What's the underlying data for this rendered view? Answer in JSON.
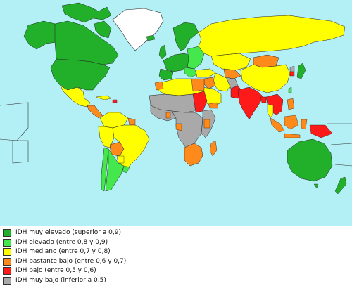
{
  "map": {
    "ocean_color": "#b3f0f5",
    "border_color": "#222222",
    "categories": {
      "very_high": "#22b02a",
      "high": "#44e84c",
      "medium": "#ffff00",
      "fairly_low": "#ff8a1c",
      "low": "#ff1a1a",
      "very_low": "#a9a9a9",
      "no_data": "#ffffff"
    }
  },
  "legend": {
    "items": [
      {
        "label": "IDH muy elevado (superior a 0,9)",
        "color": "#22b02a"
      },
      {
        "label": "IDH elevado (entre 0,8 y 0,9)",
        "color": "#44e84c"
      },
      {
        "label": "IDH mediano (entre 0,7 y 0,8)",
        "color": "#ffff00"
      },
      {
        "label": "IDH bastante bajo (entre 0,6 y 0,7)",
        "color": "#ff8a1c"
      },
      {
        "label": "IDH bajo (entre 0,5 y 0,6)",
        "color": "#ff1a1a"
      },
      {
        "label": "IDH muy bajo (inferior a 0,5)",
        "color": "#a9a9a9"
      }
    ]
  }
}
